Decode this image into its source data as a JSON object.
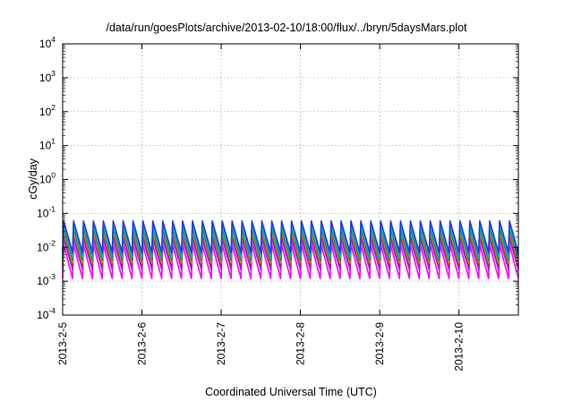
{
  "chart_data": {
    "type": "line",
    "title": "/data/run/goesPlots/archive/2013-02-10/18:00/flux/../bryn/5daysMars.plot",
    "xlabel": "Coordinated Universal Time (UTC)",
    "ylabel": "cGy/day",
    "yscale": "log",
    "ylim": [
      0.0001,
      10000
    ],
    "y_ticks": [
      {
        "base": "10",
        "exp": "-4",
        "value": 0.0001
      },
      {
        "base": "10",
        "exp": "-3",
        "value": 0.001
      },
      {
        "base": "10",
        "exp": "-2",
        "value": 0.01
      },
      {
        "base": "10",
        "exp": "-1",
        "value": 0.1
      },
      {
        "base": "10",
        "exp": "0",
        "value": 1
      },
      {
        "base": "10",
        "exp": "1",
        "value": 10
      },
      {
        "base": "10",
        "exp": "2",
        "value": 100
      },
      {
        "base": "10",
        "exp": "3",
        "value": 1000
      },
      {
        "base": "10",
        "exp": "4",
        "value": 10000
      }
    ],
    "xlim": [
      "2013-02-05",
      "2013-02-10T18:00"
    ],
    "x_ticks": [
      "2013-2-5",
      "2013-2-6",
      "2013-2-7",
      "2013-2-8",
      "2013-2-9",
      "2013-2-10"
    ],
    "grid": true,
    "pattern": {
      "periods_per_day": 8,
      "description": "periodic sawtooth dose-rate traces"
    },
    "series": [
      {
        "color": "#1f3fd6",
        "peak": 0.06,
        "trough": 0.007
      },
      {
        "color": "#1a9bd8",
        "peak": 0.05,
        "trough": 0.006
      },
      {
        "color": "#00b0b0",
        "peak": 0.045,
        "trough": 0.005
      },
      {
        "color": "#2e8b57",
        "peak": 0.035,
        "trough": 0.004
      },
      {
        "color": "#d4a017",
        "peak": 0.03,
        "trough": 0.0035
      },
      {
        "color": "#d81b1b",
        "peak": 0.025,
        "trough": 0.003
      },
      {
        "color": "#8a2be2",
        "peak": 0.018,
        "trough": 0.0022
      },
      {
        "color": "#ff00ff",
        "peak": 0.012,
        "trough": 0.0012
      }
    ]
  }
}
